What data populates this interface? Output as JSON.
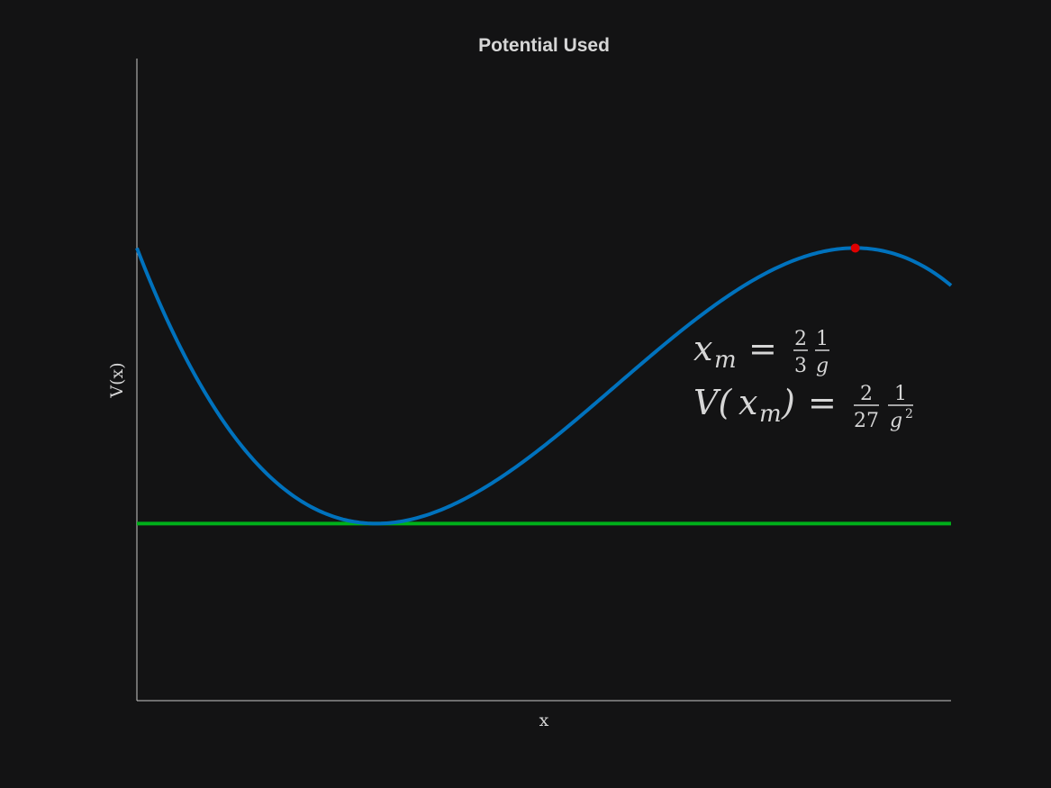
{
  "chart_data": {
    "type": "line",
    "title": "Potential Used",
    "xlabel": "x",
    "ylabel": "V(x)",
    "grid": false,
    "show_ticks": false,
    "xlim": [
      -0.3333,
      0.8
    ],
    "ylim": [
      -0.0952,
      0.25
    ],
    "g": 1,
    "series": [
      {
        "kind": "curve",
        "formula": "V(x) = x^2 - g x^3",
        "color": "#0072bd",
        "x_range": [
          -0.3333,
          0.8
        ]
      },
      {
        "kind": "hline",
        "y": 0,
        "color": "#00b01a"
      },
      {
        "kind": "point",
        "x": 0.6667,
        "y": 0.1481,
        "color": "#e00000"
      }
    ],
    "annotation": {
      "line1": {
        "lhs_var": "x",
        "lhs_sub": "m",
        "eq": "=",
        "frac1_num": "2",
        "frac1_den": "3",
        "frac2_num": "1",
        "frac2_den": "g"
      },
      "line2": {
        "lhs_prefix": "V(",
        "lhs_var": "x",
        "lhs_sub": "m",
        "lhs_suffix": ")",
        "eq": "=",
        "frac1_num": "2",
        "frac1_den": "27",
        "frac2_num": "1",
        "frac2_den": "g",
        "frac2_den_sup": "2"
      }
    }
  }
}
